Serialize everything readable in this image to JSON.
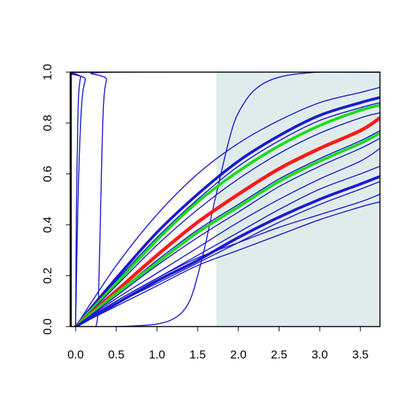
{
  "chart_data": {
    "type": "line",
    "title": "",
    "xlabel": "",
    "ylabel": "",
    "xlim": [
      -0.06,
      3.74
    ],
    "ylim": [
      0,
      1
    ],
    "x_ticks": [
      "0.0",
      "0.5",
      "1.0",
      "1.5",
      "2.0",
      "2.5",
      "3.0",
      "3.5"
    ],
    "y_ticks": [
      "0.0",
      "0.2",
      "0.4",
      "0.6",
      "0.8",
      "1.0"
    ],
    "grid": false,
    "legend": "none",
    "shaded_region": {
      "x_from": 1.73,
      "x_to": 3.74,
      "color": "#e0ecec"
    },
    "colors": {
      "default": "#1a1acd",
      "red": "#ff1a1a",
      "green": "#1adc1a",
      "frame": "#000000"
    },
    "series": [
      {
        "color": "blue",
        "width": 1.5,
        "values": [
          [
            0,
            0
          ],
          [
            0.01,
            0.45
          ],
          [
            0.03,
            0.85
          ],
          [
            0.06,
            0.98
          ],
          [
            0.1,
            1.0
          ],
          [
            3.74,
            1.0
          ]
        ]
      },
      {
        "color": "blue",
        "width": 1.5,
        "values": [
          [
            0,
            0
          ],
          [
            0.03,
            0.5
          ],
          [
            0.07,
            0.85
          ],
          [
            0.12,
            0.97
          ],
          [
            0.2,
            1.0
          ],
          [
            3.74,
            1.0
          ]
        ]
      },
      {
        "color": "blue",
        "width": 1.5,
        "values": [
          [
            0.2,
            0
          ],
          [
            0.25,
            0.0
          ],
          [
            0.28,
            0.1
          ],
          [
            0.31,
            0.5
          ],
          [
            0.34,
            0.85
          ],
          [
            0.38,
            0.97
          ],
          [
            0.45,
            1.0
          ],
          [
            3.74,
            1.0
          ]
        ]
      },
      {
        "color": "blue",
        "width": 1.5,
        "values": [
          [
            0,
            0
          ],
          [
            0.5,
            0.0
          ],
          [
            1.0,
            0.01
          ],
          [
            1.25,
            0.04
          ],
          [
            1.4,
            0.1
          ],
          [
            1.5,
            0.2
          ],
          [
            1.6,
            0.33
          ],
          [
            1.7,
            0.48
          ],
          [
            1.8,
            0.62
          ],
          [
            1.9,
            0.75
          ],
          [
            2.0,
            0.84
          ],
          [
            2.2,
            0.93
          ],
          [
            2.5,
            0.98
          ],
          [
            3.0,
            1.0
          ],
          [
            3.74,
            1.0
          ]
        ]
      },
      {
        "color": "blue",
        "width": 1.5,
        "values": [
          [
            0,
            0
          ],
          [
            0.5,
            0.24
          ],
          [
            1.0,
            0.44
          ],
          [
            1.5,
            0.6
          ],
          [
            2.0,
            0.72
          ],
          [
            2.5,
            0.81
          ],
          [
            3.0,
            0.88
          ],
          [
            3.5,
            0.92
          ],
          [
            3.74,
            0.94
          ]
        ]
      },
      {
        "color": "blue",
        "width": 4,
        "values": [
          [
            0,
            0
          ],
          [
            0.5,
            0.19
          ],
          [
            1.0,
            0.37
          ],
          [
            1.5,
            0.52
          ],
          [
            2.0,
            0.65
          ],
          [
            2.5,
            0.75
          ],
          [
            3.0,
            0.83
          ],
          [
            3.5,
            0.88
          ],
          [
            3.74,
            0.9
          ]
        ]
      },
      {
        "color": "blue",
        "width": 1.5,
        "values": [
          [
            0,
            0
          ],
          [
            0.5,
            0.18
          ],
          [
            1.0,
            0.35
          ],
          [
            1.5,
            0.5
          ],
          [
            2.0,
            0.63
          ],
          [
            2.5,
            0.73
          ],
          [
            3.0,
            0.81
          ],
          [
            3.5,
            0.86
          ],
          [
            3.74,
            0.88
          ]
        ]
      },
      {
        "color": "green",
        "width": 4,
        "values": [
          [
            0,
            0
          ],
          [
            0.5,
            0.17
          ],
          [
            1.0,
            0.34
          ],
          [
            1.5,
            0.49
          ],
          [
            2.0,
            0.61
          ],
          [
            2.5,
            0.71
          ],
          [
            3.0,
            0.79
          ],
          [
            3.5,
            0.85
          ],
          [
            3.74,
            0.87
          ]
        ]
      },
      {
        "color": "blue",
        "width": 1.5,
        "values": [
          [
            0,
            0
          ],
          [
            0.5,
            0.16
          ],
          [
            1.0,
            0.32
          ],
          [
            1.5,
            0.46
          ],
          [
            2.0,
            0.58
          ],
          [
            2.5,
            0.68
          ],
          [
            3.0,
            0.76
          ],
          [
            3.5,
            0.82
          ],
          [
            3.74,
            0.84
          ]
        ]
      },
      {
        "color": "red",
        "width": 5,
        "values": [
          [
            0,
            0
          ],
          [
            0.5,
            0.14
          ],
          [
            1.0,
            0.28
          ],
          [
            1.5,
            0.41
          ],
          [
            2.0,
            0.52
          ],
          [
            2.5,
            0.62
          ],
          [
            3.0,
            0.7
          ],
          [
            3.5,
            0.77
          ],
          [
            3.74,
            0.82
          ]
        ]
      },
      {
        "color": "blue",
        "width": 1.5,
        "values": [
          [
            0,
            0
          ],
          [
            0.5,
            0.13
          ],
          [
            1.0,
            0.26
          ],
          [
            1.5,
            0.38
          ],
          [
            2.0,
            0.48
          ],
          [
            2.5,
            0.58
          ],
          [
            3.0,
            0.66
          ],
          [
            3.5,
            0.73
          ],
          [
            3.74,
            0.77
          ]
        ]
      },
      {
        "color": "green",
        "width": 4,
        "values": [
          [
            0,
            0
          ],
          [
            0.5,
            0.13
          ],
          [
            1.0,
            0.25
          ],
          [
            1.5,
            0.37
          ],
          [
            2.0,
            0.47
          ],
          [
            2.5,
            0.57
          ],
          [
            3.0,
            0.65
          ],
          [
            3.5,
            0.72
          ],
          [
            3.74,
            0.76
          ]
        ]
      },
      {
        "color": "blue",
        "width": 1.5,
        "values": [
          [
            0,
            0
          ],
          [
            0.5,
            0.12
          ],
          [
            1.0,
            0.24
          ],
          [
            1.5,
            0.35
          ],
          [
            2.0,
            0.45
          ],
          [
            2.5,
            0.55
          ],
          [
            3.0,
            0.63
          ],
          [
            3.5,
            0.7
          ],
          [
            3.74,
            0.74
          ]
        ]
      },
      {
        "color": "blue",
        "width": 1.5,
        "values": [
          [
            0,
            0
          ],
          [
            0.5,
            0.11
          ],
          [
            1.0,
            0.21
          ],
          [
            1.5,
            0.31
          ],
          [
            2.0,
            0.41
          ],
          [
            2.5,
            0.5
          ],
          [
            3.0,
            0.58
          ],
          [
            3.5,
            0.65
          ],
          [
            3.74,
            0.7
          ]
        ]
      },
      {
        "color": "blue",
        "width": 1.5,
        "values": [
          [
            0,
            0
          ],
          [
            0.5,
            0.1
          ],
          [
            1.0,
            0.19
          ],
          [
            1.5,
            0.28
          ],
          [
            2.0,
            0.37
          ],
          [
            2.5,
            0.46
          ],
          [
            3.0,
            0.54
          ],
          [
            3.5,
            0.6
          ],
          [
            3.74,
            0.63
          ]
        ]
      },
      {
        "color": "blue",
        "width": 4,
        "values": [
          [
            0,
            0
          ],
          [
            0.5,
            0.09
          ],
          [
            1.0,
            0.18
          ],
          [
            1.5,
            0.26
          ],
          [
            2.0,
            0.35
          ],
          [
            2.5,
            0.43
          ],
          [
            3.0,
            0.5
          ],
          [
            3.5,
            0.56
          ],
          [
            3.74,
            0.59
          ]
        ]
      },
      {
        "color": "blue",
        "width": 1.5,
        "values": [
          [
            0,
            0
          ],
          [
            0.5,
            0.09
          ],
          [
            1.0,
            0.17
          ],
          [
            1.5,
            0.25
          ],
          [
            2.0,
            0.33
          ],
          [
            2.5,
            0.41
          ],
          [
            3.0,
            0.48
          ],
          [
            3.5,
            0.54
          ],
          [
            3.74,
            0.57
          ]
        ]
      },
      {
        "color": "blue",
        "width": 1.5,
        "values": [
          [
            0,
            0
          ],
          [
            0.5,
            0.1
          ],
          [
            1.0,
            0.19
          ],
          [
            1.5,
            0.27
          ],
          [
            2.0,
            0.33
          ],
          [
            2.5,
            0.39
          ],
          [
            3.0,
            0.44
          ],
          [
            3.5,
            0.49
          ],
          [
            3.74,
            0.52
          ]
        ]
      },
      {
        "color": "blue",
        "width": 1.5,
        "values": [
          [
            0,
            0
          ],
          [
            0.5,
            0.08
          ],
          [
            1.0,
            0.16
          ],
          [
            1.5,
            0.24
          ],
          [
            2.0,
            0.3
          ],
          [
            2.5,
            0.36
          ],
          [
            3.0,
            0.42
          ],
          [
            3.5,
            0.47
          ],
          [
            3.74,
            0.49
          ]
        ]
      }
    ]
  }
}
